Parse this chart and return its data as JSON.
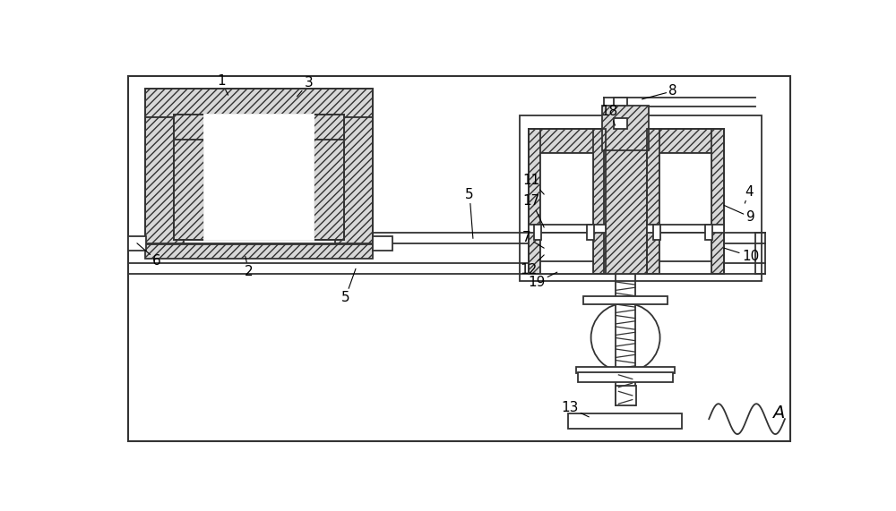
{
  "fig_width": 10.0,
  "fig_height": 5.71,
  "dpi": 100,
  "bg_color": "#ffffff",
  "line_color": "#333333",
  "lw": 1.3,
  "fs": 11
}
